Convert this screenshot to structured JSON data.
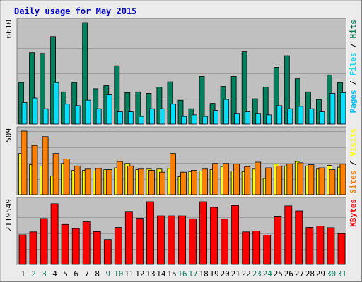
{
  "chart_data": {
    "type": "bar",
    "title": "Daily usage for May 2015",
    "categories": [
      "1",
      "2",
      "3",
      "4",
      "5",
      "6",
      "7",
      "8",
      "9",
      "10",
      "11",
      "12",
      "13",
      "14",
      "15",
      "16",
      "17",
      "18",
      "19",
      "20",
      "21",
      "22",
      "23",
      "24",
      "25",
      "26",
      "27",
      "28",
      "29",
      "30",
      "31"
    ],
    "weekend_days": [
      "2",
      "3",
      "9",
      "10",
      "16",
      "17",
      "23",
      "24",
      "30",
      "31"
    ],
    "panels": [
      {
        "id": "hits",
        "ymax_label": "6610",
        "ymax": 6610,
        "right_label": [
          "Pages",
          " / ",
          "Files",
          " / ",
          "Hits"
        ],
        "series": [
          {
            "name": "Hits",
            "color": "#00805c",
            "values": [
              2700,
              4650,
              4600,
              5700,
              2100,
              2700,
              6610,
              2300,
              2500,
              3800,
              2050,
              2100,
              2000,
              2400,
              2750,
              1550,
              1000,
              3100,
              1350,
              2450,
              3100,
              4700,
              1650,
              2400,
              3700,
              4450,
              2950,
              2100,
              1600,
              3200,
              2700
            ]
          },
          {
            "name": "Files",
            "color": "#00e0ff",
            "values": [
              1400,
              1700,
              1000,
              2700,
              1300,
              1200,
              1550,
              1000,
              1900,
              800,
              800,
              500,
              1000,
              1000,
              1300,
              500,
              600,
              500,
              900,
              1600,
              700,
              800,
              700,
              600,
              1200,
              1000,
              1150,
              1000,
              800,
              2000,
              2050
            ]
          },
          {
            "name": "Pages",
            "color": "#00c0ff",
            "values": [
              0,
              0,
              0,
              0,
              0,
              0,
              0,
              0,
              0,
              0,
              0,
              0,
              0,
              0,
              0,
              0,
              0,
              0,
              0,
              0,
              0,
              0,
              0,
              0,
              0,
              0,
              0,
              0,
              0,
              0,
              0
            ]
          }
        ]
      },
      {
        "id": "visits",
        "ymax_label": "509",
        "ymax": 509,
        "right_label": [
          "Sites",
          " / ",
          "Visits"
        ],
        "series": [
          {
            "name": "Visits",
            "color": "#ffff00",
            "values": [
              330,
              240,
              230,
              150,
              250,
              195,
              195,
              190,
              200,
              215,
              250,
              200,
              205,
              205,
              210,
              145,
              185,
              190,
              200,
              225,
              190,
              185,
              205,
              130,
              245,
              230,
              265,
              230,
              205,
              235,
              220
            ]
          },
          {
            "name": "Sites",
            "color": "#ff8000",
            "values": [
              509,
              395,
              465,
              330,
              285,
              230,
              205,
              210,
              200,
              265,
              230,
              205,
              195,
              180,
              330,
              180,
              195,
              205,
              250,
              250,
              245,
              225,
              260,
              215,
              230,
              245,
              255,
              240,
              215,
              200,
              245
            ]
          }
        ]
      },
      {
        "id": "kbytes",
        "ymax_label": "2119549",
        "ymax": 2119549,
        "right_label": [
          "KBytes"
        ],
        "series": [
          {
            "name": "KBytes",
            "color": "#ff0000",
            "values": [
              1000000,
              1100000,
              1550000,
              2050000,
              1350000,
              1210000,
              1440000,
              1110000,
              840000,
              1250000,
              1790000,
              1560000,
              2119549,
              1640000,
              1640000,
              1640000,
              1540000,
              2119549,
              1930000,
              1530000,
              1990000,
              1100000,
              1130000,
              990000,
              1610000,
              1980000,
              1810000,
              1250000,
              1300000,
              1240000,
              1040000
            ]
          }
        ]
      }
    ],
    "colors": {
      "background": "#ececec",
      "panel": "#c0c0c0",
      "title": "#0000c0",
      "weekday_label": "#000000",
      "weekend_label": "#00805c",
      "slash": "#000000"
    }
  }
}
